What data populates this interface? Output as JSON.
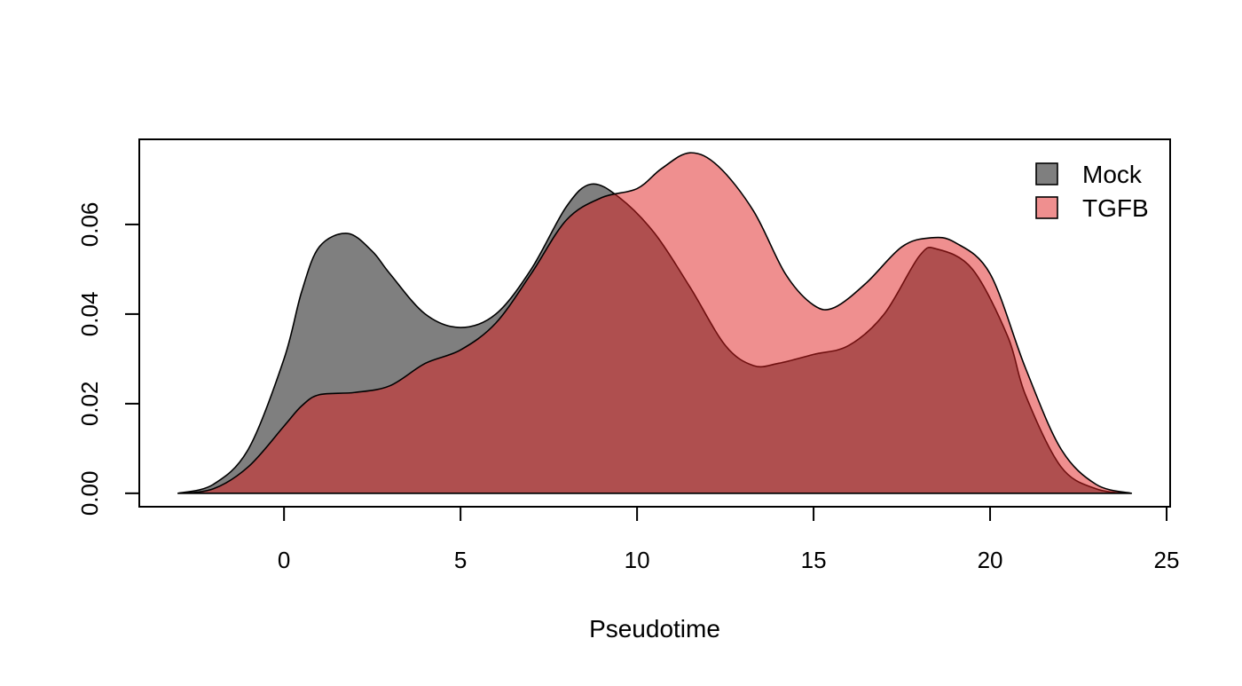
{
  "chart_data": {
    "type": "area",
    "title": "",
    "xlabel": "Pseudotime",
    "ylabel": "",
    "xlim": [
      -4.1,
      25.1
    ],
    "ylim": [
      -0.003,
      0.079
    ],
    "x_ticks": [
      0,
      5,
      10,
      15,
      20,
      25
    ],
    "x_tick_labels": [
      "0",
      "5",
      "10",
      "15",
      "20",
      "25"
    ],
    "y_ticks": [
      0.0,
      0.02,
      0.04,
      0.06
    ],
    "y_tick_labels": [
      "0.00",
      "0.02",
      "0.04",
      "0.06"
    ],
    "grid": false,
    "legend_position": "top-right",
    "series": [
      {
        "name": "Mock",
        "color": "#808080",
        "x": [
          -3.0,
          -2.0,
          -1.0,
          0.0,
          0.5,
          1.0,
          1.8,
          2.5,
          3.0,
          4.0,
          5.0,
          6.0,
          7.0,
          8.0,
          8.7,
          9.5,
          10.5,
          11.5,
          12.5,
          13.3,
          14.0,
          15.0,
          16.0,
          17.0,
          18.0,
          18.5,
          19.5,
          20.5,
          21.0,
          22.0,
          23.0,
          24.0
        ],
        "y": [
          0.0,
          0.002,
          0.01,
          0.03,
          0.045,
          0.055,
          0.058,
          0.054,
          0.049,
          0.04,
          0.037,
          0.04,
          0.05,
          0.064,
          0.069,
          0.066,
          0.058,
          0.046,
          0.033,
          0.0285,
          0.029,
          0.031,
          0.033,
          0.04,
          0.053,
          0.0545,
          0.05,
          0.035,
          0.022,
          0.006,
          0.001,
          0.0
        ]
      },
      {
        "name": "TGFB",
        "color": "#e05050",
        "x": [
          -3.0,
          -2.0,
          -1.0,
          0.0,
          0.5,
          1.0,
          2.0,
          3.0,
          4.0,
          5.0,
          6.0,
          7.0,
          8.0,
          9.0,
          10.0,
          10.7,
          11.5,
          12.3,
          13.3,
          14.2,
          15.0,
          15.6,
          16.5,
          17.5,
          18.3,
          19.0,
          20.0,
          21.0,
          22.0,
          23.0,
          24.0
        ],
        "y": [
          0.0,
          0.001,
          0.006,
          0.015,
          0.0195,
          0.022,
          0.0225,
          0.024,
          0.029,
          0.032,
          0.038,
          0.049,
          0.061,
          0.066,
          0.068,
          0.0725,
          0.076,
          0.073,
          0.063,
          0.049,
          0.042,
          0.0415,
          0.047,
          0.055,
          0.057,
          0.056,
          0.049,
          0.028,
          0.01,
          0.002,
          0.0
        ]
      }
    ]
  }
}
